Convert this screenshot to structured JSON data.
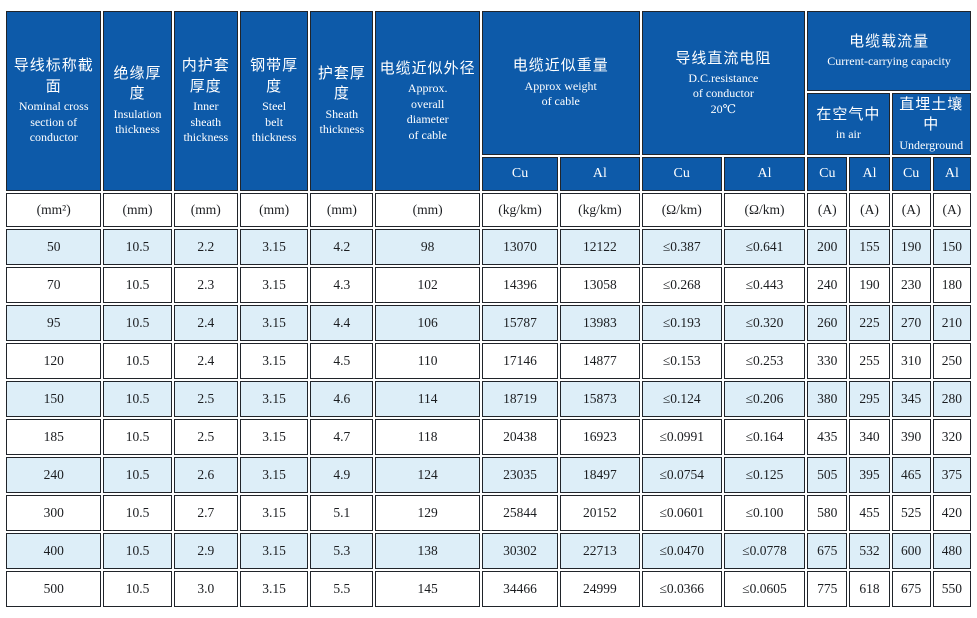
{
  "colors": {
    "header_blue": "#0d5aa9",
    "row_alt_blue": "#ddeef8",
    "grid_border": "#20242a",
    "header_text": "#ffffff",
    "body_text": "#1b1d20"
  },
  "header": {
    "nominal": {
      "zh": "导线标称截面",
      "en": "Nominal  cross\nsection of\nconductor"
    },
    "insulation": {
      "zh": "绝缘厚度",
      "en": "Insulation\nthickness"
    },
    "inner_sheath": {
      "zh": "内护套\n厚度",
      "en": "Inner\nsheath\nthickness"
    },
    "steel_belt": {
      "zh": "钢带厚度",
      "en": "Steel\nbelt\nthickness"
    },
    "sheath": {
      "zh": "护套厚度",
      "en": "Sheath\nthickness"
    },
    "diameter": {
      "zh": "电缆近似外径",
      "en": "Approx.\noverall\ndiameter\nof cable"
    },
    "weight": {
      "zh": "电缆近似重量",
      "en": "Approx weight\nof cable"
    },
    "dc_resistance": {
      "zh": "导线直流电阻",
      "en": "D.C.resistance\nof conductor\n20℃"
    },
    "capacity": {
      "zh": "电缆载流量",
      "en": "Current-carrying capacity"
    },
    "in_air": {
      "zh": "在空气中",
      "en": "in air"
    },
    "underground": {
      "zh": "直埋土壤中",
      "en": "Underground"
    },
    "cu": "Cu",
    "al": "Al"
  },
  "chart_data": {
    "type": "table",
    "columns": [
      "nominal_cross_section",
      "insulation_thickness",
      "inner_sheath_thickness",
      "steel_belt_thickness",
      "sheath_thickness",
      "approx_overall_diameter",
      "weight_cu",
      "weight_al",
      "dc_resistance_cu",
      "dc_resistance_al",
      "capacity_in_air_cu",
      "capacity_in_air_al",
      "capacity_underground_cu",
      "capacity_underground_al"
    ],
    "units": [
      "(mm²)",
      "(mm)",
      "(mm)",
      "(mm)",
      "(mm)",
      "(mm)",
      "(kg/km)",
      "(kg/km)",
      "(Ω/km)",
      "(Ω/km)",
      "(A)",
      "(A)",
      "(A)",
      "(A)"
    ],
    "rows": [
      [
        "50",
        "10.5",
        "2.2",
        "3.15",
        "4.2",
        "98",
        "13070",
        "12122",
        "≤0.387",
        "≤0.641",
        "200",
        "155",
        "190",
        "150"
      ],
      [
        "70",
        "10.5",
        "2.3",
        "3.15",
        "4.3",
        "102",
        "14396",
        "13058",
        "≤0.268",
        "≤0.443",
        "240",
        "190",
        "230",
        "180"
      ],
      [
        "95",
        "10.5",
        "2.4",
        "3.15",
        "4.4",
        "106",
        "15787",
        "13983",
        "≤0.193",
        "≤0.320",
        "260",
        "225",
        "270",
        "210"
      ],
      [
        "120",
        "10.5",
        "2.4",
        "3.15",
        "4.5",
        "110",
        "17146",
        "14877",
        "≤0.153",
        "≤0.253",
        "330",
        "255",
        "310",
        "250"
      ],
      [
        "150",
        "10.5",
        "2.5",
        "3.15",
        "4.6",
        "114",
        "18719",
        "15873",
        "≤0.124",
        "≤0.206",
        "380",
        "295",
        "345",
        "280"
      ],
      [
        "185",
        "10.5",
        "2.5",
        "3.15",
        "4.7",
        "118",
        "20438",
        "16923",
        "≤0.0991",
        "≤0.164",
        "435",
        "340",
        "390",
        "320"
      ],
      [
        "240",
        "10.5",
        "2.6",
        "3.15",
        "4.9",
        "124",
        "23035",
        "18497",
        "≤0.0754",
        "≤0.125",
        "505",
        "395",
        "465",
        "375"
      ],
      [
        "300",
        "10.5",
        "2.7",
        "3.15",
        "5.1",
        "129",
        "25844",
        "20152",
        "≤0.0601",
        "≤0.100",
        "580",
        "455",
        "525",
        "420"
      ],
      [
        "400",
        "10.5",
        "2.9",
        "3.15",
        "5.3",
        "138",
        "30302",
        "22713",
        "≤0.0470",
        "≤0.0778",
        "675",
        "532",
        "600",
        "480"
      ],
      [
        "500",
        "10.5",
        "3.0",
        "3.15",
        "5.5",
        "145",
        "34466",
        "24999",
        "≤0.0366",
        "≤0.0605",
        "775",
        "618",
        "675",
        "550"
      ]
    ]
  }
}
